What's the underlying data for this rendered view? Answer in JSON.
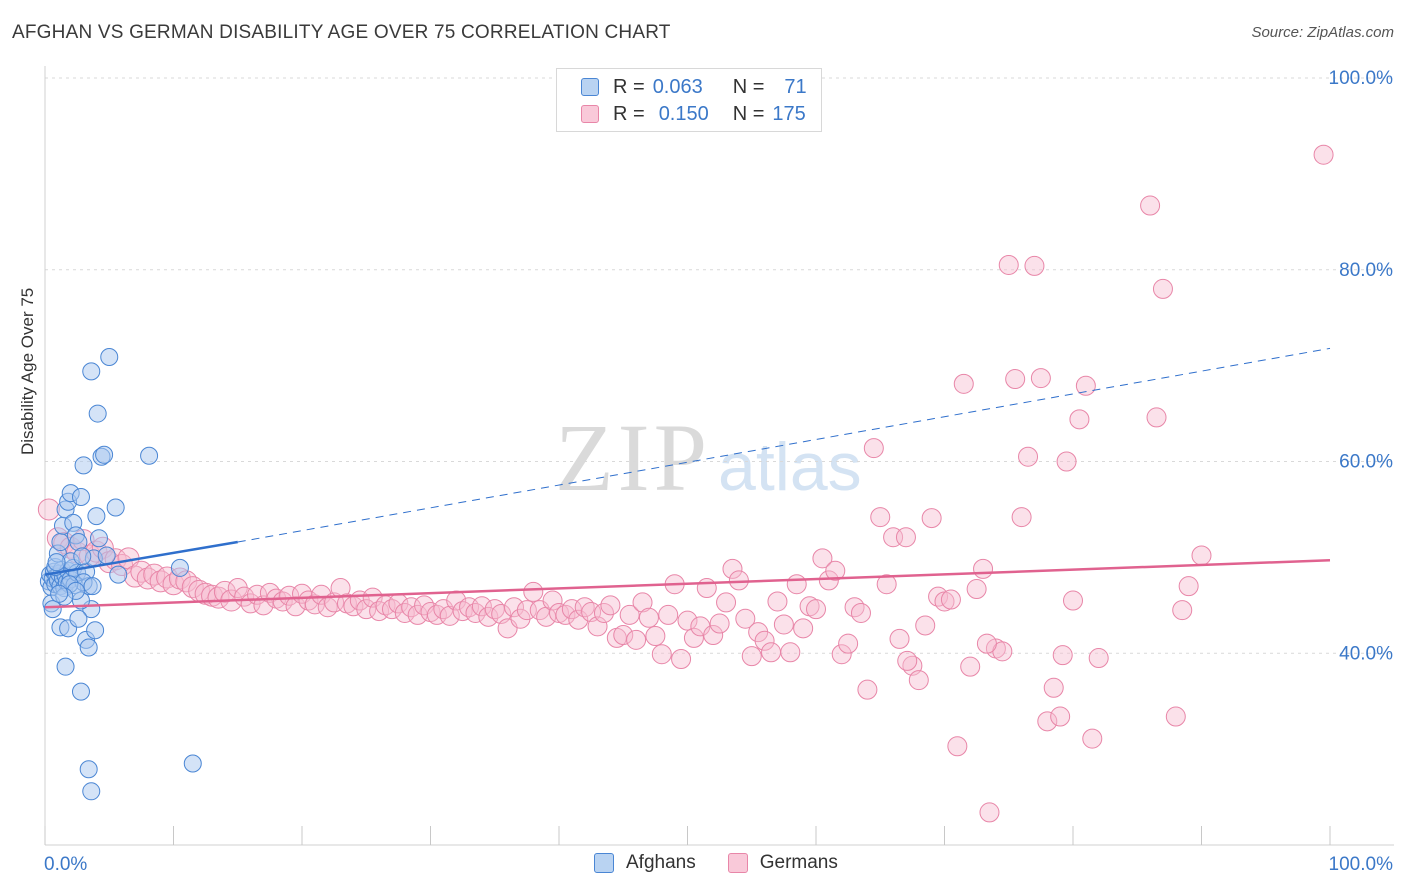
{
  "title": "AFGHAN VS GERMAN DISABILITY AGE OVER 75 CORRELATION CHART",
  "source": "Source: ZipAtlas.com",
  "watermark": {
    "zip": "ZIP",
    "atlas": "atlas"
  },
  "legend": {
    "rows": [
      {
        "r_label": "R =",
        "r_value": "0.063",
        "n_label": "N =",
        "n_value": "71"
      },
      {
        "r_label": "R =",
        "r_value": "0.150",
        "n_label": "N =",
        "n_value": "175"
      }
    ]
  },
  "bottom_legend": {
    "afghans": "Afghans",
    "germans": "Germans"
  },
  "colors": {
    "afghans_fill": "#a9c8ef",
    "afghans_stroke": "#4a86d4",
    "afghans_line": "#2f6fcc",
    "germans_fill": "#f7bcd0",
    "germans_stroke": "#e886a8",
    "germans_line": "#e0628f",
    "axis_text": "#3b78c8"
  },
  "chart_data": {
    "type": "scatter",
    "title": "AFGHAN VS GERMAN DISABILITY AGE OVER 75 CORRELATION CHART",
    "xlabel": "",
    "ylabel": "Disability Age Over 75",
    "xlim": [
      0,
      100
    ],
    "ylim": [
      20,
      100
    ],
    "x_tick_labels": [
      "0.0%",
      "100.0%"
    ],
    "y_tick_labels": [
      "40.0%",
      "60.0%",
      "80.0%",
      "100.0%"
    ],
    "y_ticks": [
      40,
      60,
      80,
      100
    ],
    "grid": true,
    "legend_position": "top-center",
    "series": [
      {
        "name": "Afghans",
        "R": 0.063,
        "N": 71,
        "trend": {
          "x0": 0,
          "y0": 48.2,
          "x1": 15,
          "y1": 51.6,
          "dashed_x1": 100,
          "dashed_y1": 71.8
        },
        "points": [
          [
            0.3,
            47.5
          ],
          [
            0.4,
            48.2
          ],
          [
            0.5,
            46.9
          ],
          [
            0.6,
            47.8
          ],
          [
            0.7,
            48.5
          ],
          [
            0.8,
            47.2
          ],
          [
            0.9,
            48.0
          ],
          [
            1.0,
            47.6
          ],
          [
            1.1,
            48.3
          ],
          [
            1.2,
            47.0
          ],
          [
            1.3,
            48.7
          ],
          [
            1.4,
            47.9
          ],
          [
            1.5,
            46.8
          ],
          [
            1.6,
            48.1
          ],
          [
            1.7,
            47.4
          ],
          [
            1.8,
            48.6
          ],
          [
            2.0,
            47.7
          ],
          [
            2.2,
            48.9
          ],
          [
            2.3,
            47.1
          ],
          [
            2.5,
            48.4
          ],
          [
            0.5,
            45.2
          ],
          [
            0.6,
            44.6
          ],
          [
            0.8,
            49.0
          ],
          [
            1.0,
            50.4
          ],
          [
            1.2,
            51.6
          ],
          [
            1.4,
            53.3
          ],
          [
            1.6,
            55.0
          ],
          [
            1.8,
            55.8
          ],
          [
            2.0,
            56.7
          ],
          [
            2.2,
            53.6
          ],
          [
            2.4,
            52.3
          ],
          [
            2.6,
            51.6
          ],
          [
            2.8,
            56.3
          ],
          [
            3.0,
            59.6
          ],
          [
            3.2,
            48.5
          ],
          [
            3.4,
            47.0
          ],
          [
            3.6,
            44.6
          ],
          [
            3.8,
            49.9
          ],
          [
            4.0,
            54.3
          ],
          [
            4.2,
            52.0
          ],
          [
            4.4,
            60.5
          ],
          [
            4.6,
            60.7
          ],
          [
            3.6,
            69.4
          ],
          [
            4.1,
            65.0
          ],
          [
            5.0,
            70.9
          ],
          [
            5.5,
            55.2
          ],
          [
            5.7,
            48.2
          ],
          [
            8.1,
            60.6
          ],
          [
            10.5,
            48.9
          ],
          [
            11.5,
            28.5
          ],
          [
            1.2,
            42.7
          ],
          [
            1.8,
            42.6
          ],
          [
            2.6,
            43.6
          ],
          [
            2.8,
            45.5
          ],
          [
            3.0,
            47.4
          ],
          [
            3.2,
            41.4
          ],
          [
            3.4,
            40.6
          ],
          [
            3.9,
            42.4
          ],
          [
            1.6,
            38.6
          ],
          [
            2.8,
            36.0
          ],
          [
            3.4,
            27.9
          ],
          [
            3.6,
            25.6
          ],
          [
            2.0,
            49.6
          ],
          [
            1.9,
            47.2
          ],
          [
            2.4,
            46.5
          ],
          [
            1.5,
            45.9
          ],
          [
            1.1,
            46.2
          ],
          [
            0.9,
            49.5
          ],
          [
            3.7,
            47.0
          ],
          [
            4.8,
            50.2
          ],
          [
            2.9,
            50.1
          ]
        ]
      },
      {
        "name": "Germans",
        "R": 0.15,
        "N": 175,
        "trend": {
          "x0": 0,
          "y0": 44.8,
          "x1": 100,
          "y1": 49.7
        },
        "points": [
          [
            0.3,
            55.0
          ],
          [
            1.0,
            52.0
          ],
          [
            1.5,
            51.5
          ],
          [
            2.0,
            51.0
          ],
          [
            2.5,
            50.5
          ],
          [
            3.0,
            51.8
          ],
          [
            3.5,
            50.2
          ],
          [
            4.0,
            50.6
          ],
          [
            4.5,
            51.0
          ],
          [
            5.0,
            49.5
          ],
          [
            5.5,
            49.8
          ],
          [
            6.0,
            49.2
          ],
          [
            6.5,
            49.9
          ],
          [
            7.0,
            48.0
          ],
          [
            7.5,
            48.5
          ],
          [
            8.0,
            47.8
          ],
          [
            8.5,
            48.2
          ],
          [
            9.0,
            47.5
          ],
          [
            9.5,
            47.9
          ],
          [
            10.0,
            47.2
          ],
          [
            10.5,
            47.8
          ],
          [
            11.0,
            47.5
          ],
          [
            11.5,
            46.9
          ],
          [
            12.0,
            46.5
          ],
          [
            12.5,
            46.2
          ],
          [
            13.0,
            46.0
          ],
          [
            13.5,
            45.8
          ],
          [
            14.0,
            46.4
          ],
          [
            14.5,
            45.5
          ],
          [
            15.0,
            46.8
          ],
          [
            15.5,
            45.9
          ],
          [
            16.0,
            45.2
          ],
          [
            16.5,
            46.1
          ],
          [
            17.0,
            45.0
          ],
          [
            17.5,
            46.3
          ],
          [
            18.0,
            45.7
          ],
          [
            18.5,
            45.4
          ],
          [
            19.0,
            46.0
          ],
          [
            19.5,
            44.9
          ],
          [
            20.0,
            46.2
          ],
          [
            20.5,
            45.5
          ],
          [
            21.0,
            45.1
          ],
          [
            21.5,
            46.1
          ],
          [
            22.0,
            44.8
          ],
          [
            22.5,
            45.3
          ],
          [
            23.0,
            46.8
          ],
          [
            23.5,
            45.2
          ],
          [
            24.0,
            44.9
          ],
          [
            24.5,
            45.5
          ],
          [
            25.0,
            44.6
          ],
          [
            25.5,
            45.8
          ],
          [
            26.0,
            44.4
          ],
          [
            26.5,
            45.0
          ],
          [
            27.0,
            44.6
          ],
          [
            27.5,
            45.2
          ],
          [
            28.0,
            44.2
          ],
          [
            28.5,
            44.8
          ],
          [
            29.0,
            44.0
          ],
          [
            29.5,
            45.0
          ],
          [
            30.0,
            44.3
          ],
          [
            30.5,
            44.0
          ],
          [
            31.0,
            44.6
          ],
          [
            31.5,
            43.9
          ],
          [
            32.0,
            45.5
          ],
          [
            32.5,
            44.4
          ],
          [
            33.0,
            44.8
          ],
          [
            33.5,
            44.2
          ],
          [
            34.0,
            44.9
          ],
          [
            34.5,
            43.8
          ],
          [
            35.0,
            44.6
          ],
          [
            35.5,
            44.1
          ],
          [
            36.0,
            42.6
          ],
          [
            36.5,
            44.8
          ],
          [
            37.0,
            43.6
          ],
          [
            37.5,
            44.5
          ],
          [
            38.0,
            46.4
          ],
          [
            38.5,
            44.5
          ],
          [
            39.0,
            43.8
          ],
          [
            39.5,
            45.5
          ],
          [
            40.0,
            44.2
          ],
          [
            40.5,
            44.0
          ],
          [
            41.0,
            44.6
          ],
          [
            41.5,
            43.5
          ],
          [
            42.0,
            44.8
          ],
          [
            42.5,
            44.3
          ],
          [
            43.0,
            42.8
          ],
          [
            43.5,
            44.2
          ],
          [
            44.0,
            45.0
          ],
          [
            44.5,
            41.6
          ],
          [
            45.0,
            41.9
          ],
          [
            45.5,
            44.0
          ],
          [
            46.0,
            41.4
          ],
          [
            46.5,
            45.3
          ],
          [
            47.0,
            43.7
          ],
          [
            47.5,
            41.8
          ],
          [
            48.0,
            39.9
          ],
          [
            48.5,
            44.0
          ],
          [
            49.0,
            47.2
          ],
          [
            49.5,
            39.4
          ],
          [
            50.0,
            43.4
          ],
          [
            50.5,
            41.6
          ],
          [
            51.0,
            42.8
          ],
          [
            51.5,
            46.8
          ],
          [
            52.0,
            41.9
          ],
          [
            52.5,
            43.1
          ],
          [
            53.0,
            45.3
          ],
          [
            53.5,
            48.8
          ],
          [
            54.0,
            47.6
          ],
          [
            54.5,
            43.6
          ],
          [
            55.0,
            39.7
          ],
          [
            55.5,
            42.2
          ],
          [
            56.0,
            41.3
          ],
          [
            56.5,
            40.1
          ],
          [
            57.0,
            45.4
          ],
          [
            57.5,
            43.0
          ],
          [
            58.0,
            40.1
          ],
          [
            58.5,
            47.2
          ],
          [
            59.0,
            42.6
          ],
          [
            59.5,
            44.9
          ],
          [
            60.0,
            44.6
          ],
          [
            60.5,
            49.9
          ],
          [
            61.0,
            47.6
          ],
          [
            61.5,
            48.6
          ],
          [
            62.0,
            39.9
          ],
          [
            62.5,
            41.0
          ],
          [
            63.0,
            44.8
          ],
          [
            63.5,
            44.2
          ],
          [
            64.0,
            36.2
          ],
          [
            64.5,
            61.4
          ],
          [
            65.0,
            54.2
          ],
          [
            65.5,
            47.2
          ],
          [
            66.0,
            52.1
          ],
          [
            66.5,
            41.5
          ],
          [
            67.0,
            52.1
          ],
          [
            67.5,
            38.7
          ],
          [
            68.0,
            37.2
          ],
          [
            68.5,
            42.9
          ],
          [
            69.0,
            54.1
          ],
          [
            69.5,
            45.9
          ],
          [
            70.0,
            45.4
          ],
          [
            70.5,
            45.6
          ],
          [
            71.0,
            30.3
          ],
          [
            71.5,
            68.1
          ],
          [
            72.0,
            38.6
          ],
          [
            72.5,
            46.7
          ],
          [
            73.0,
            48.8
          ],
          [
            73.5,
            23.4
          ],
          [
            74.0,
            40.5
          ],
          [
            74.5,
            40.2
          ],
          [
            75.0,
            80.5
          ],
          [
            75.5,
            68.6
          ],
          [
            76.0,
            54.2
          ],
          [
            76.5,
            60.5
          ],
          [
            77.0,
            80.4
          ],
          [
            77.5,
            68.7
          ],
          [
            78.0,
            32.9
          ],
          [
            78.5,
            36.4
          ],
          [
            79.0,
            33.4
          ],
          [
            79.5,
            60.0
          ],
          [
            80.0,
            45.5
          ],
          [
            80.5,
            64.4
          ],
          [
            81.0,
            67.9
          ],
          [
            81.5,
            31.1
          ],
          [
            82.0,
            39.5
          ],
          [
            86.0,
            86.7
          ],
          [
            86.5,
            64.6
          ],
          [
            87.0,
            78.0
          ],
          [
            88.0,
            33.4
          ],
          [
            88.5,
            44.5
          ],
          [
            89.0,
            47.0
          ],
          [
            90.0,
            50.2
          ],
          [
            99.5,
            92.0
          ],
          [
            79.2,
            39.8
          ],
          [
            67.1,
            39.2
          ],
          [
            73.3,
            41.0
          ]
        ]
      }
    ]
  }
}
